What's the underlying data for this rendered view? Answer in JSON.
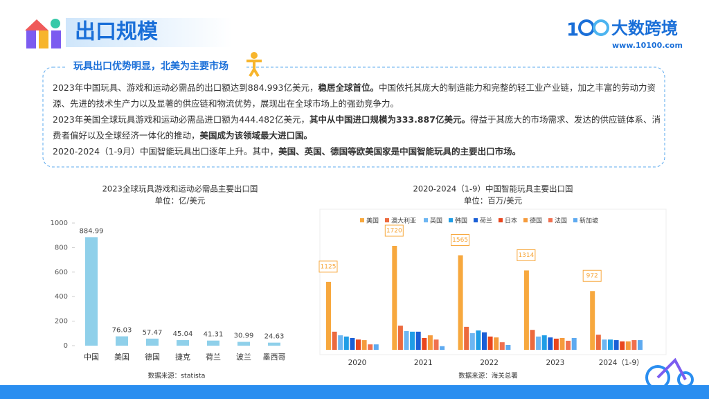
{
  "header": {
    "title": "出口规模",
    "brand": "大数跨境",
    "url": "www.10100.com"
  },
  "section": {
    "heading": "玩具出口优势明显，北美为主要市场",
    "paragraphs": [
      [
        {
          "text": "2023年中国玩具、游戏和运动必需品的出口额达到884.993亿美元，",
          "bold": false
        },
        {
          "text": "稳居全球首位。",
          "bold": true
        },
        {
          "text": "中国依托其庞大的制造能力和完整的轻工业产业链，加之丰富的劳动力资源、先进的技术生产力以及显著的供应链和物流优势，展现出在全球市场上的强劲竞争力。",
          "bold": false
        }
      ],
      [
        {
          "text": "2023年美国全球玩具游戏和运动必需品进口额为444.482亿美元，",
          "bold": false
        },
        {
          "text": "其中从中国进口规模为333.887亿美元。",
          "bold": true
        },
        {
          "text": "得益于其庞大的市场需求、发达的供应链体系、消费者偏好以及全球经济一体化的推动，",
          "bold": false
        },
        {
          "text": "美国成为该领域最大进口国。",
          "bold": true
        }
      ],
      [
        {
          "text": "2020-2024（1-9月）中国智能玩具出口逐年上升。其中，",
          "bold": false
        },
        {
          "text": "美国、英国、德国等欧美国家是中国智能玩具的主要出口市场。",
          "bold": true
        }
      ]
    ]
  },
  "chart_data": [
    {
      "type": "bar",
      "title": "2023全球玩具游戏和运动必需品主要出口国",
      "subtitle": "单位：亿/美元",
      "categories": [
        "中国",
        "美国",
        "德国",
        "捷克",
        "荷兰",
        "波兰",
        "墨西哥"
      ],
      "values": [
        884.99,
        76.03,
        57.47,
        45.04,
        41.31,
        30.99,
        24.63
      ],
      "color": "#8fd0ea",
      "ylim": [
        0,
        1000
      ],
      "yticks": [
        0,
        200,
        400,
        600,
        800,
        1000
      ],
      "data_labels": true,
      "source": "数据来源：statista"
    },
    {
      "type": "grouped_bar",
      "title": "2020-2024（1-9）中国智能玩具主要出口国",
      "subtitle": "单位：百万/美元",
      "categories": [
        "2020",
        "2021",
        "2022",
        "2023",
        "2024（1-9）"
      ],
      "series": [
        {
          "name": "美国",
          "color": "#f7a83e",
          "values": [
            1125,
            1720,
            1565,
            1314,
            972
          ],
          "labels": true
        },
        {
          "name": "澳大利亚",
          "color": "#ec6a3e",
          "values": [
            300,
            400,
            380,
            330,
            250
          ]
        },
        {
          "name": "英国",
          "color": "#6db6f2",
          "values": [
            240,
            310,
            275,
            220,
            170
          ]
        },
        {
          "name": "韩国",
          "color": "#1f9de6",
          "values": [
            220,
            300,
            320,
            240,
            170
          ]
        },
        {
          "name": "荷兰",
          "color": "#1a5fd6",
          "values": [
            195,
            300,
            290,
            205,
            160
          ]
        },
        {
          "name": "日本",
          "color": "#e9461e",
          "values": [
            170,
            195,
            220,
            185,
            140
          ]
        },
        {
          "name": "德国",
          "color": "#f59b3c",
          "values": [
            160,
            240,
            205,
            195,
            140
          ]
        },
        {
          "name": "法国",
          "color": "#f0704f",
          "values": [
            90,
            170,
            125,
            150,
            160
          ]
        },
        {
          "name": "新加坡",
          "color": "#5eaaf0",
          "values": [
            90,
            60,
            80,
            195,
            160
          ]
        }
      ],
      "source": "数据来源：海关总署"
    }
  ]
}
